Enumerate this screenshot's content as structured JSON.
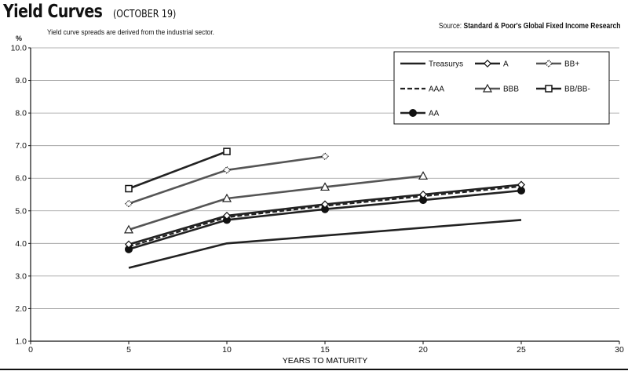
{
  "header": {
    "title": "Yield Curves",
    "title_date": "(OCTOBER 19)",
    "subtitle": "Yield curve spreads are derived from the industrial sector.",
    "source_prefix": "Source:",
    "source_name": "Standard & Poor's Global Fixed Income Research"
  },
  "chart_data": {
    "type": "line",
    "title": "Yield Curves (OCTOBER 19)",
    "xlabel": "YEARS TO MATURITY",
    "ylabel": "%",
    "xlim": [
      0,
      30
    ],
    "ylim": [
      1.0,
      10.0
    ],
    "x_ticks": [
      "0",
      "5",
      "10",
      "15",
      "20",
      "25",
      "30"
    ],
    "y_ticks": [
      "1.0",
      "2.0",
      "3.0",
      "4.0",
      "5.0",
      "6.0",
      "7.0",
      "8.0",
      "9.0",
      "10.0"
    ],
    "grid": true,
    "legend_position": "top-right",
    "series": [
      {
        "name": "Treasurys",
        "color": "#222222",
        "marker": "none",
        "dash": "solid",
        "points": [
          [
            5,
            3.25
          ],
          [
            10,
            4.0
          ],
          [
            25,
            4.72
          ]
        ]
      },
      {
        "name": "AAA",
        "color": "#222222",
        "marker": "none",
        "dash": "dashed",
        "points": [
          [
            5,
            3.9
          ],
          [
            10,
            4.8
          ],
          [
            15,
            5.15
          ],
          [
            20,
            5.45
          ],
          [
            25,
            5.75
          ]
        ]
      },
      {
        "name": "AA",
        "color": "#222222",
        "marker": "circle-filled",
        "dash": "solid",
        "points": [
          [
            5,
            3.82
          ],
          [
            10,
            4.72
          ],
          [
            15,
            5.05
          ],
          [
            20,
            5.33
          ],
          [
            25,
            5.62
          ]
        ]
      },
      {
        "name": "A",
        "color": "#222222",
        "marker": "diamond-open",
        "dash": "solid",
        "points": [
          [
            5,
            3.97
          ],
          [
            10,
            4.85
          ],
          [
            15,
            5.2
          ],
          [
            20,
            5.5
          ],
          [
            25,
            5.8
          ]
        ]
      },
      {
        "name": "BBB",
        "color": "#555555",
        "marker": "triangle-open",
        "dash": "solid",
        "points": [
          [
            5,
            4.42
          ],
          [
            10,
            5.38
          ],
          [
            15,
            5.73
          ],
          [
            20,
            6.07
          ]
        ]
      },
      {
        "name": "BB+",
        "color": "#555555",
        "marker": "diamond-dotted",
        "dash": "solid",
        "points": [
          [
            5,
            5.22
          ],
          [
            10,
            6.25
          ],
          [
            15,
            6.67
          ]
        ]
      },
      {
        "name": "BB/BB-",
        "color": "#222222",
        "marker": "square-open",
        "dash": "solid",
        "points": [
          [
            5,
            5.68
          ],
          [
            10,
            6.82
          ]
        ]
      }
    ]
  }
}
